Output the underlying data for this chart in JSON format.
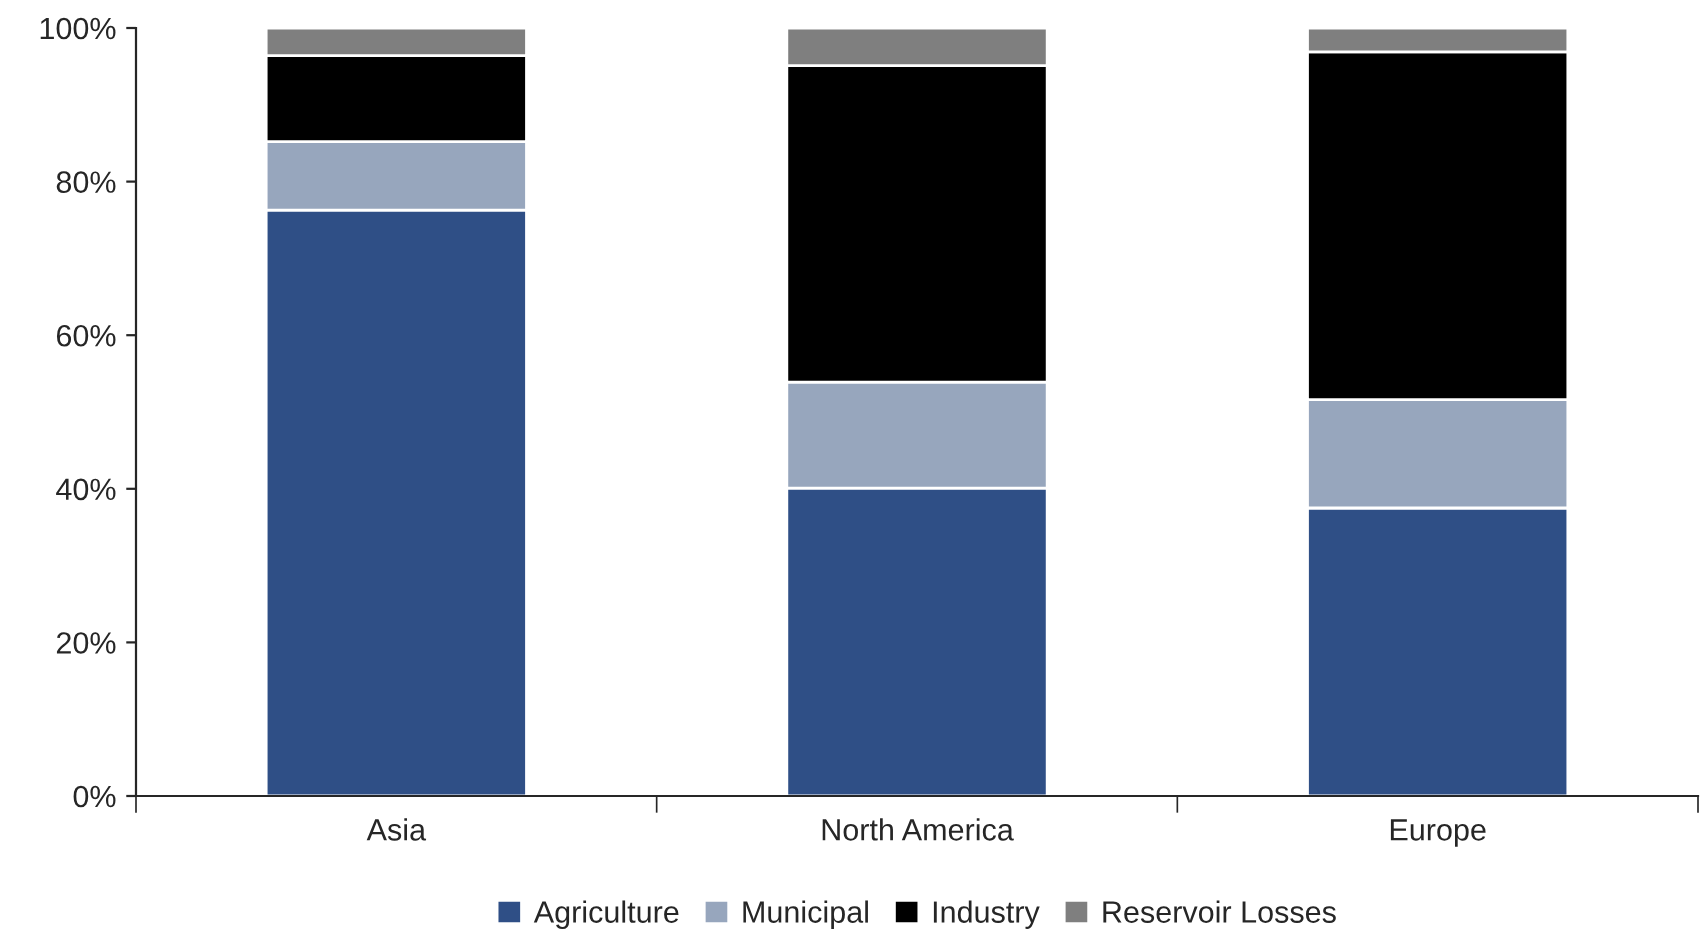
{
  "chart_data": {
    "type": "bar",
    "stacked": true,
    "categories": [
      "Asia",
      "North America",
      "Europe"
    ],
    "series": [
      {
        "name": "Agriculture",
        "color": "#2f4f86",
        "values": [
          76.3,
          40.1,
          37.5
        ]
      },
      {
        "name": "Municipal",
        "color": "#97a6bd",
        "values": [
          8.9,
          13.8,
          14.1
        ]
      },
      {
        "name": "Industry",
        "color": "#000000",
        "values": [
          11.2,
          41.2,
          45.3
        ]
      },
      {
        "name": "Reservoir Losses",
        "color": "#7f7f7f",
        "values": [
          3.6,
          4.9,
          3.1
        ]
      }
    ],
    "ylim": [
      0,
      100
    ],
    "yticks": [
      {
        "value": 0,
        "label": "0%"
      },
      {
        "value": 20,
        "label": "20%"
      },
      {
        "value": 40,
        "label": "40%"
      },
      {
        "value": 60,
        "label": "60%"
      },
      {
        "value": 80,
        "label": "80%"
      },
      {
        "value": 100,
        "label": "100%"
      }
    ],
    "grid": false,
    "legend": "bottom"
  }
}
